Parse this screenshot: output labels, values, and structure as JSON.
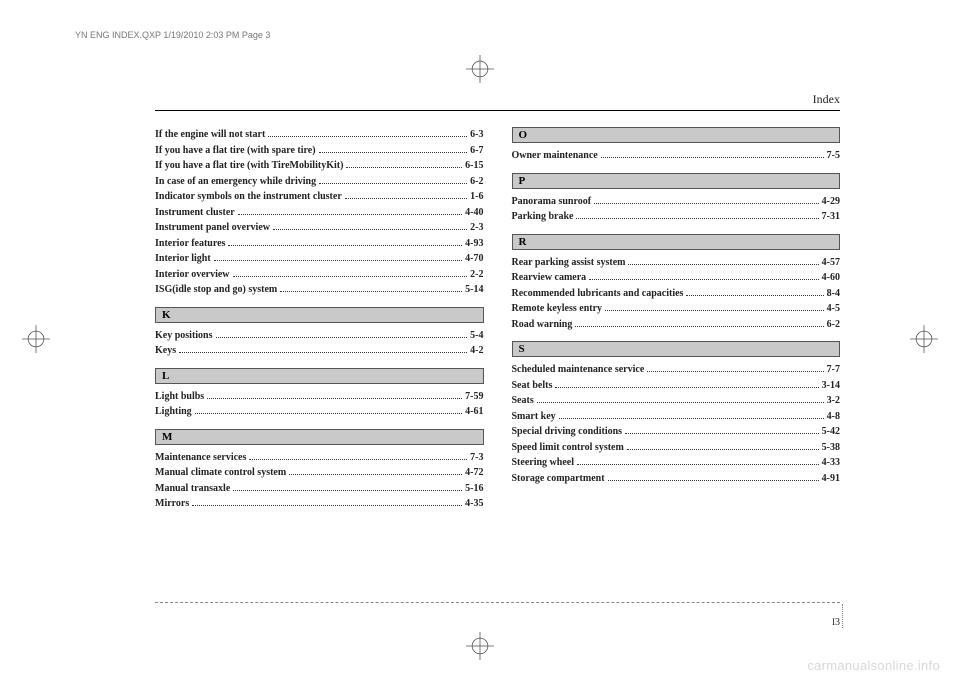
{
  "header_text": "YN ENG INDEX.QXP  1/19/2010  2:03 PM  Page 3",
  "section_title": "Index",
  "page_number_section": "I",
  "page_number": "3",
  "watermark": "carmanualsonline.info",
  "columns": [
    {
      "items": [
        {
          "type": "entry",
          "label": "If the engine will not start",
          "page": "6-3"
        },
        {
          "type": "entry",
          "label": "If you have a flat tire (with spare tire)",
          "page": "6-7"
        },
        {
          "type": "entry",
          "label": "If you have a flat tire (with TireMobilityKit)",
          "page": "6-15"
        },
        {
          "type": "entry",
          "label": "In case of an emergency while driving",
          "page": "6-2"
        },
        {
          "type": "entry",
          "label": "Indicator symbols on the instrument cluster",
          "page": "1-6"
        },
        {
          "type": "entry",
          "label": "Instrument cluster",
          "page": "4-40"
        },
        {
          "type": "entry",
          "label": "Instrument panel overview",
          "page": "2-3"
        },
        {
          "type": "entry",
          "label": "Interior features",
          "page": "4-93"
        },
        {
          "type": "entry",
          "label": "Interior light",
          "page": "4-70"
        },
        {
          "type": "entry",
          "label": "Interior overview",
          "page": "2-2"
        },
        {
          "type": "entry",
          "label": "ISG(idle stop and go) system",
          "page": "5-14"
        },
        {
          "type": "section",
          "label": "K"
        },
        {
          "type": "entry",
          "label": "Key positions",
          "page": "5-4"
        },
        {
          "type": "entry",
          "label": "Keys",
          "page": "4-2"
        },
        {
          "type": "section",
          "label": "L"
        },
        {
          "type": "entry",
          "label": "Light bulbs",
          "page": "7-59"
        },
        {
          "type": "entry",
          "label": "Lighting",
          "page": "4-61"
        },
        {
          "type": "section",
          "label": "M"
        },
        {
          "type": "entry",
          "label": "Maintenance services",
          "page": "7-3"
        },
        {
          "type": "entry",
          "label": "Manual climate control system",
          "page": "4-72"
        },
        {
          "type": "entry",
          "label": "Manual transaxle",
          "page": "5-16"
        },
        {
          "type": "entry",
          "label": "Mirrors",
          "page": "4-35"
        }
      ]
    },
    {
      "items": [
        {
          "type": "section",
          "label": "O"
        },
        {
          "type": "entry",
          "label": "Owner maintenance",
          "page": "7-5"
        },
        {
          "type": "section",
          "label": "P"
        },
        {
          "type": "entry",
          "label": "Panorama sunroof",
          "page": "4-29"
        },
        {
          "type": "entry",
          "label": "Parking brake",
          "page": "7-31"
        },
        {
          "type": "section",
          "label": "R"
        },
        {
          "type": "entry",
          "label": "Rear parking assist system",
          "page": "4-57"
        },
        {
          "type": "entry",
          "label": "Rearview camera",
          "page": "4-60"
        },
        {
          "type": "entry",
          "label": "Recommended lubricants and capacities",
          "page": "8-4"
        },
        {
          "type": "entry",
          "label": "Remote keyless entry",
          "page": "4-5"
        },
        {
          "type": "entry",
          "label": "Road warning",
          "page": "6-2"
        },
        {
          "type": "section",
          "label": "S"
        },
        {
          "type": "entry",
          "label": "Scheduled maintenance service",
          "page": "7-7"
        },
        {
          "type": "entry",
          "label": "Seat belts",
          "page": "3-14"
        },
        {
          "type": "entry",
          "label": "Seats",
          "page": "3-2"
        },
        {
          "type": "entry",
          "label": "Smart key",
          "page": "4-8"
        },
        {
          "type": "entry",
          "label": "Special driving conditions",
          "page": "5-42"
        },
        {
          "type": "entry",
          "label": "Speed limit control system",
          "page": "5-38"
        },
        {
          "type": "entry",
          "label": "Steering wheel",
          "page": "4-33"
        },
        {
          "type": "entry",
          "label": "Storage compartment",
          "page": "4-91"
        }
      ]
    }
  ],
  "reg_mark": {
    "stroke": "#555555",
    "fill": "#ffffff",
    "size": 28
  }
}
